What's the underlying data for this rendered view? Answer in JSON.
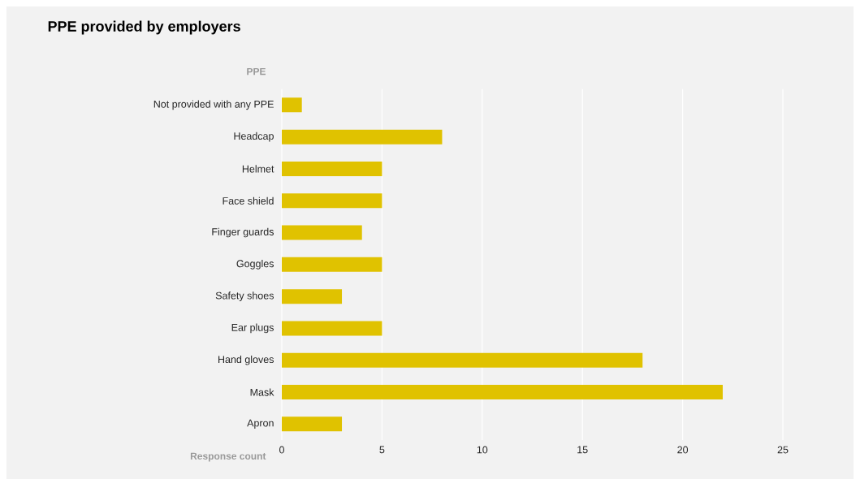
{
  "chart_data": {
    "type": "bar",
    "orientation": "horizontal",
    "title": "PPE provided by employers",
    "ylabel": "PPE",
    "xlabel": "Response count",
    "categories": [
      "Not provided with any PPE",
      "Headcap",
      "Helmet",
      "Face shield",
      "Finger guards",
      "Goggles",
      "Safety shoes",
      "Ear plugs",
      "Hand gloves",
      "Mask",
      "Apron"
    ],
    "values": [
      1,
      8,
      5,
      5,
      4,
      5,
      3,
      5,
      18,
      22,
      3
    ],
    "color": "#e0c200",
    "xlim": [
      0,
      25
    ],
    "xticks": [
      0,
      5,
      10,
      15,
      20,
      25
    ],
    "grid": "x"
  }
}
